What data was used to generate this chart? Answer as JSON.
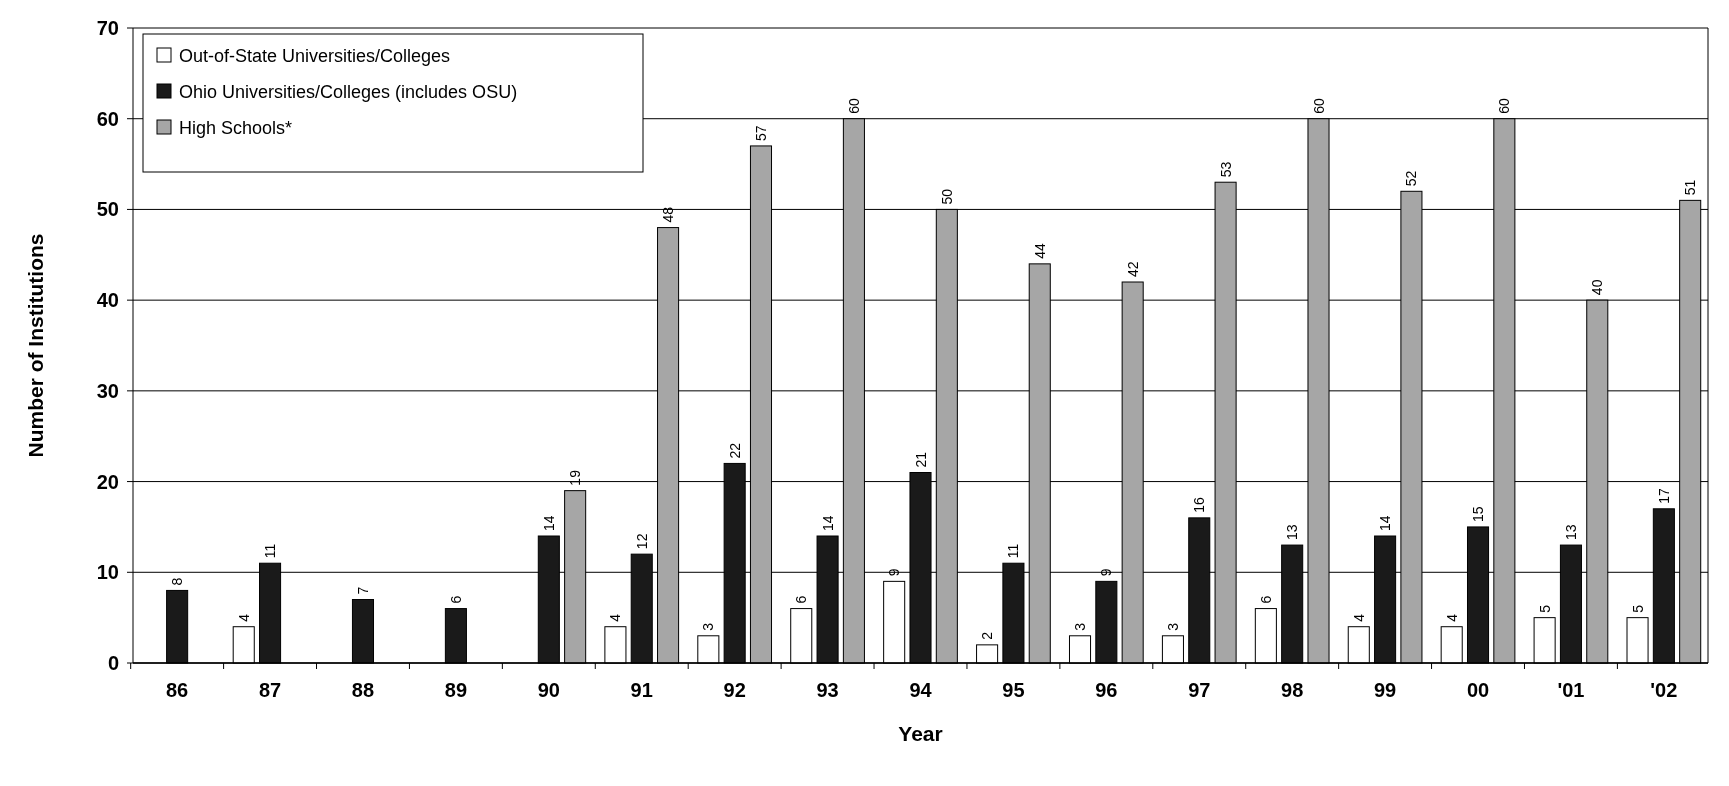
{
  "chart_data": {
    "type": "bar",
    "xlabel": "Year",
    "ylabel": "Number of Institutions",
    "categories": [
      "86",
      "87",
      "88",
      "89",
      "90",
      "91",
      "92",
      "93",
      "94",
      "95",
      "96",
      "97",
      "98",
      "99",
      "00",
      "'01",
      "'02"
    ],
    "series": [
      {
        "name": "Out-of-State Universities/Colleges",
        "color": "#ffffff",
        "values": [
          null,
          4,
          null,
          null,
          null,
          4,
          3,
          6,
          9,
          2,
          3,
          3,
          6,
          4,
          4,
          5,
          5
        ]
      },
      {
        "name": "Ohio Universities/Colleges (includes OSU)",
        "color": "#1a1a1a",
        "values": [
          8,
          11,
          7,
          6,
          14,
          12,
          22,
          14,
          21,
          11,
          9,
          16,
          13,
          14,
          15,
          13,
          17
        ]
      },
      {
        "name": "High Schools*",
        "color": "#a6a6a6",
        "values": [
          null,
          null,
          null,
          null,
          19,
          48,
          57,
          60,
          50,
          44,
          42,
          53,
          60,
          52,
          60,
          40,
          51
        ]
      }
    ],
    "ylim": [
      0,
      70
    ],
    "yticks": [
      0,
      10,
      20,
      30,
      40,
      50,
      60,
      70
    ],
    "grid": "y",
    "legend": "top left",
    "data_labels": true
  }
}
